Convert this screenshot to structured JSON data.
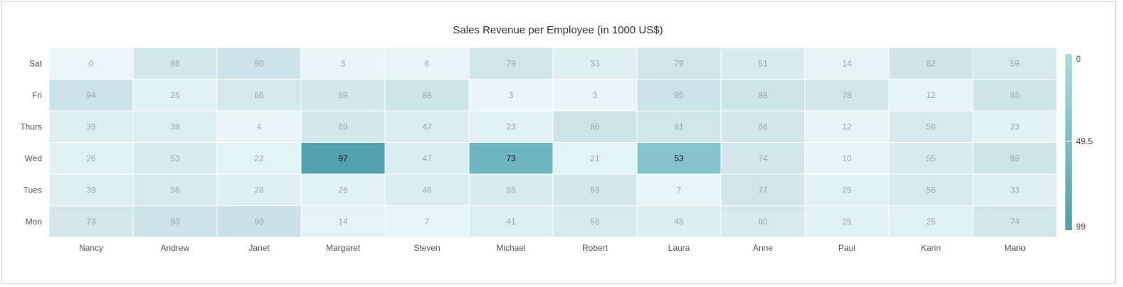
{
  "chart_data": {
    "type": "heatmap",
    "title": "Sales Revenue per Employee (in 1000 US$)",
    "xlabel": "",
    "ylabel": "",
    "x_categories": [
      "Nancy",
      "Andrew",
      "Janet",
      "Margaret",
      "Steven",
      "Michael",
      "Robert",
      "Laura",
      "Anne",
      "Paul",
      "Karin",
      "Mario"
    ],
    "y_categories": [
      "Sat",
      "Fri",
      "Thurs",
      "Wed",
      "Tues",
      "Mon"
    ],
    "values": [
      [
        0,
        68,
        90,
        3,
        6,
        79,
        33,
        79,
        51,
        14,
        82,
        59
      ],
      [
        94,
        26,
        66,
        69,
        88,
        3,
        3,
        95,
        88,
        78,
        12,
        86
      ],
      [
        39,
        38,
        4,
        69,
        47,
        23,
        86,
        81,
        68,
        12,
        58,
        23
      ],
      [
        26,
        53,
        22,
        97,
        47,
        73,
        21,
        53,
        74,
        10,
        55,
        88
      ],
      [
        39,
        58,
        28,
        26,
        46,
        55,
        69,
        7,
        77,
        25,
        56,
        33
      ],
      [
        73,
        93,
        99,
        14,
        7,
        41,
        56,
        45,
        60,
        25,
        25,
        74
      ]
    ],
    "highlighted_cells": [
      [
        3,
        3
      ],
      [
        3,
        5
      ],
      [
        3,
        7
      ]
    ],
    "legend": {
      "position": "right",
      "labels": [
        "0",
        "49.5",
        "99"
      ],
      "range": [
        0,
        99
      ]
    },
    "colors": {
      "low": "#eaf6f8",
      "high": "#c9e2e7",
      "highlight_low": "#88c6cf",
      "highlight_high": "#4fa0ad",
      "legend_top": "#aadde5",
      "legend_bottom": "#4d9ea9",
      "cell_text": "#9aa7aa",
      "cell_text_highlight": "#111111",
      "axis_text": "#555555",
      "title_text": "#333333"
    }
  }
}
